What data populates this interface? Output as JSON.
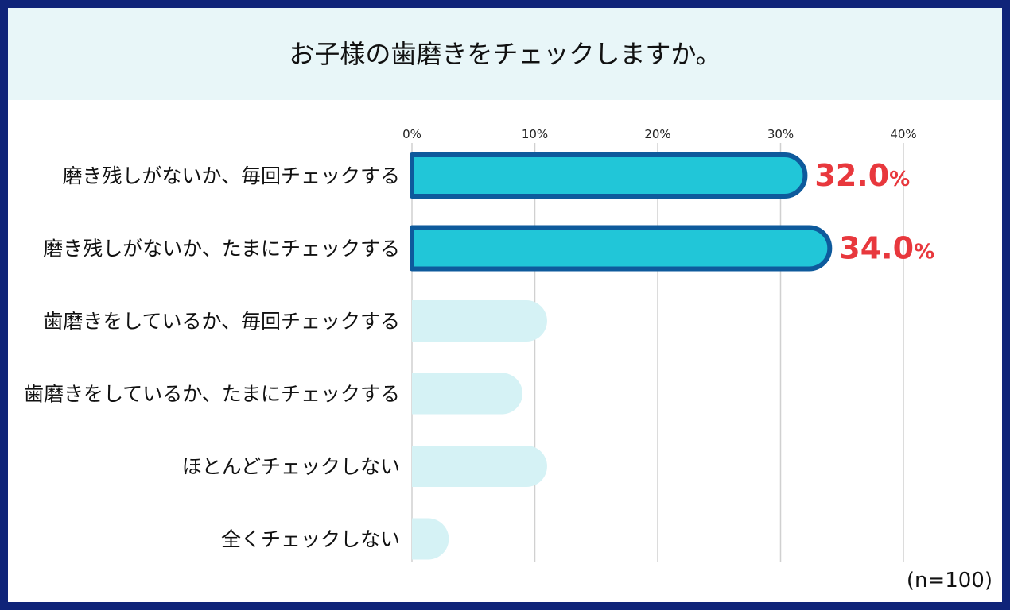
{
  "title": "お子様の歯磨きをチェックしますか。",
  "note": "(n=100)",
  "chart_data": {
    "type": "bar",
    "orientation": "horizontal",
    "categories": [
      "磨き残しがないか、毎回チェックする",
      "磨き残しがないか、たまにチェックする",
      "歯磨きをしているか、毎回チェックする",
      "歯磨きをしているか、たまにチェックする",
      "ほとんどチェックしない",
      "全くチェックしない"
    ],
    "values": [
      32.0,
      34.0,
      11.0,
      9.0,
      11.0,
      3.0
    ],
    "value_labels": [
      {
        "number": "32.0",
        "unit": "%"
      },
      {
        "number": "34.0",
        "unit": "%"
      },
      null,
      null,
      null,
      null
    ],
    "highlighted": [
      true,
      true,
      false,
      false,
      false,
      false
    ],
    "xlim": [
      0,
      40
    ],
    "ticks": [
      "0%",
      "10%",
      "20%",
      "30%",
      "40%"
    ],
    "tick_values": [
      0,
      10,
      20,
      30,
      40
    ],
    "grid": true,
    "colors": {
      "highlight_fill": "#21c6d8",
      "highlight_border": "#0e5a9c",
      "muted_fill": "#d5f2f5",
      "grid": "#d0d0d0",
      "value_label": "#e8383d"
    }
  }
}
